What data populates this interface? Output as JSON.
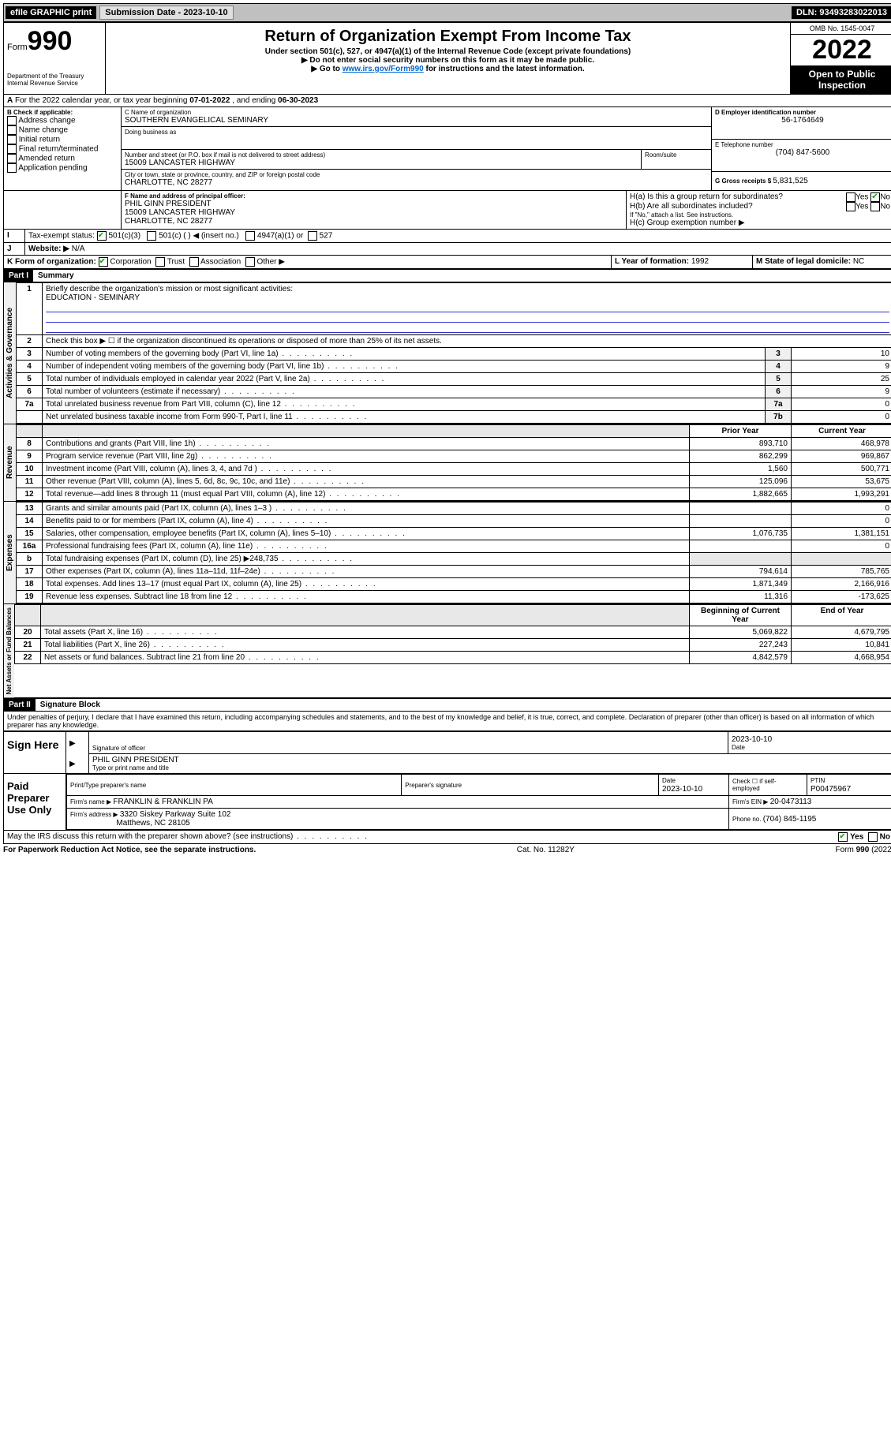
{
  "topbar": {
    "efile": "efile GRAPHIC print",
    "submission_label": "Submission Date - 2023-10-10",
    "dln_label": "DLN: 93493283022013"
  },
  "header": {
    "form_word": "Form",
    "form_num": "990",
    "dept": "Department of the Treasury",
    "irs": "Internal Revenue Service",
    "title": "Return of Organization Exempt From Income Tax",
    "subtitle": "Under section 501(c), 527, or 4947(a)(1) of the Internal Revenue Code (except private foundations)",
    "ssn_warn": "▶ Do not enter social security numbers on this form as it may be made public.",
    "goto_pre": "▶ Go to ",
    "goto_link": "www.irs.gov/Form990",
    "goto_post": " for instructions and the latest information.",
    "omb": "OMB No. 1545-0047",
    "year": "2022",
    "open": "Open to Public Inspection"
  },
  "periodA": {
    "text_a": "For the 2022 calendar year, or tax year beginning ",
    "begin": "07-01-2022",
    "text_b": " , and ending ",
    "end": "06-30-2023"
  },
  "boxB": {
    "label": "B Check if applicable:",
    "opts": [
      "Address change",
      "Name change",
      "Initial return",
      "Final return/terminated",
      "Amended return",
      "Application pending"
    ]
  },
  "boxC": {
    "name_label": "C Name of organization",
    "name": "SOUTHERN EVANGELICAL SEMINARY",
    "dba_label": "Doing business as",
    "street_label": "Number and street (or P.O. box if mail is not delivered to street address)",
    "room_label": "Room/suite",
    "street": "15009 LANCASTER HIGHWAY",
    "city_label": "City or town, state or province, country, and ZIP or foreign postal code",
    "city": "CHARLOTTE, NC  28277"
  },
  "boxD": {
    "label": "D Employer identification number",
    "value": "56-1764649"
  },
  "boxE": {
    "label": "E Telephone number",
    "value": "(704) 847-5600"
  },
  "boxG": {
    "label": "G Gross receipts $ ",
    "value": "5,831,525"
  },
  "boxF": {
    "label": "F Name and address of principal officer:",
    "line1": "PHIL GINN PRESIDENT",
    "line2": "15009 LANCASTER HIGHWAY",
    "line3": "CHARLOTTE, NC  28277"
  },
  "boxH": {
    "ha": "H(a)  Is this a group return for subordinates?",
    "hb": "H(b)  Are all subordinates included?",
    "hb_note": "If \"No,\" attach a list. See instructions.",
    "hc": "H(c)  Group exemption number ▶",
    "yes": "Yes",
    "no": "No"
  },
  "rowI": {
    "label": "Tax-exempt status:",
    "o1": "501(c)(3)",
    "o2": "501(c) (  ) ◀ (insert no.)",
    "o3": "4947(a)(1) or",
    "o4": "527"
  },
  "rowJ": {
    "label": "Website: ▶",
    "value": "N/A"
  },
  "rowK": {
    "label": "K Form of organization:",
    "o1": "Corporation",
    "o2": "Trust",
    "o3": "Association",
    "o4": "Other ▶"
  },
  "rowL": {
    "label": "L Year of formation: ",
    "value": "1992"
  },
  "rowM": {
    "label": "M State of legal domicile: ",
    "value": "NC"
  },
  "partI": {
    "header": "Part I",
    "title": "Summary"
  },
  "summary": {
    "line1_label": "Briefly describe the organization's mission or most significant activities:",
    "line1_value": "EDUCATION - SEMINARY",
    "line2_label": "Check this box ▶ ☐  if the organization discontinued its operations or disposed of more than 25% of its net assets.",
    "rows_single": [
      {
        "n": "3",
        "label": "Number of voting members of the governing body (Part VI, line 1a)",
        "idx": "3",
        "val": "10"
      },
      {
        "n": "4",
        "label": "Number of independent voting members of the governing body (Part VI, line 1b)",
        "idx": "4",
        "val": "9"
      },
      {
        "n": "5",
        "label": "Total number of individuals employed in calendar year 2022 (Part V, line 2a)",
        "idx": "5",
        "val": "25"
      },
      {
        "n": "6",
        "label": "Total number of volunteers (estimate if necessary)",
        "idx": "6",
        "val": "9"
      },
      {
        "n": "7a",
        "label": "Total unrelated business revenue from Part VIII, column (C), line 12",
        "idx": "7a",
        "val": "0"
      },
      {
        "n": "",
        "label": "Net unrelated business taxable income from Form 990-T, Part I, line 11",
        "idx": "7b",
        "val": "0"
      }
    ],
    "col_headers": {
      "prior": "Prior Year",
      "current": "Current Year"
    },
    "revenue": [
      {
        "n": "8",
        "label": "Contributions and grants (Part VIII, line 1h)",
        "p": "893,710",
        "c": "468,978"
      },
      {
        "n": "9",
        "label": "Program service revenue (Part VIII, line 2g)",
        "p": "862,299",
        "c": "969,867"
      },
      {
        "n": "10",
        "label": "Investment income (Part VIII, column (A), lines 3, 4, and 7d )",
        "p": "1,560",
        "c": "500,771"
      },
      {
        "n": "11",
        "label": "Other revenue (Part VIII, column (A), lines 5, 6d, 8c, 9c, 10c, and 11e)",
        "p": "125,096",
        "c": "53,675"
      },
      {
        "n": "12",
        "label": "Total revenue—add lines 8 through 11 (must equal Part VIII, column (A), line 12)",
        "p": "1,882,665",
        "c": "1,993,291"
      }
    ],
    "expenses": [
      {
        "n": "13",
        "label": "Grants and similar amounts paid (Part IX, column (A), lines 1–3 )",
        "p": "",
        "c": "0"
      },
      {
        "n": "14",
        "label": "Benefits paid to or for members (Part IX, column (A), line 4)",
        "p": "",
        "c": "0"
      },
      {
        "n": "15",
        "label": "Salaries, other compensation, employee benefits (Part IX, column (A), lines 5–10)",
        "p": "1,076,735",
        "c": "1,381,151"
      },
      {
        "n": "16a",
        "label": "Professional fundraising fees (Part IX, column (A), line 11e)",
        "p": "",
        "c": "0"
      },
      {
        "n": "b",
        "label": "Total fundraising expenses (Part IX, column (D), line 25) ▶248,735",
        "p": "shaded",
        "c": "shaded"
      },
      {
        "n": "17",
        "label": "Other expenses (Part IX, column (A), lines 11a–11d, 11f–24e)",
        "p": "794,614",
        "c": "785,765"
      },
      {
        "n": "18",
        "label": "Total expenses. Add lines 13–17 (must equal Part IX, column (A), line 25)",
        "p": "1,871,349",
        "c": "2,166,916"
      },
      {
        "n": "19",
        "label": "Revenue less expenses. Subtract line 18 from line 12",
        "p": "11,316",
        "c": "-173,625"
      }
    ],
    "net_headers": {
      "begin": "Beginning of Current Year",
      "end": "End of Year"
    },
    "net": [
      {
        "n": "20",
        "label": "Total assets (Part X, line 16)",
        "p": "5,069,822",
        "c": "4,679,795"
      },
      {
        "n": "21",
        "label": "Total liabilities (Part X, line 26)",
        "p": "227,243",
        "c": "10,841"
      },
      {
        "n": "22",
        "label": "Net assets or fund balances. Subtract line 21 from line 20",
        "p": "4,842,579",
        "c": "4,668,954"
      }
    ]
  },
  "vert": {
    "gov": "Activities & Governance",
    "rev": "Revenue",
    "exp": "Expenses",
    "net": "Net Assets or Fund Balances"
  },
  "partII": {
    "header": "Part II",
    "title": "Signature Block",
    "penalty": "Under penalties of perjury, I declare that I have examined this return, including accompanying schedules and statements, and to the best of my knowledge and belief, it is true, correct, and complete. Declaration of preparer (other than officer) is based on all information of which preparer has any knowledge."
  },
  "sign": {
    "here": "Sign Here",
    "sig_label": "Signature of officer",
    "date_label": "Date",
    "date": "2023-10-10",
    "name": "PHIL GINN PRESIDENT",
    "name_label": "Type or print name and title"
  },
  "paid": {
    "label": "Paid Preparer Use Only",
    "c1": "Print/Type preparer's name",
    "c2": "Preparer's signature",
    "c3": "Date",
    "c3v": "2023-10-10",
    "c4": "Check ☐ if self-employed",
    "c5": "PTIN",
    "c5v": "P00475967",
    "firm_label": "Firm's name    ▶ ",
    "firm": "FRANKLIN & FRANKLIN PA",
    "ein_label": "Firm's EIN ▶ ",
    "ein": "20-0473113",
    "addr_label": "Firm's address ▶ ",
    "addr1": "3320 Siskey Parkway Suite 102",
    "addr2": "Matthews, NC  28105",
    "phone_label": "Phone no. ",
    "phone": "(704) 845-1195"
  },
  "footer": {
    "discuss": "May the IRS discuss this return with the preparer shown above? (see instructions)",
    "yes": "Yes",
    "no": "No",
    "pra": "For Paperwork Reduction Act Notice, see the separate instructions.",
    "cat": "Cat. No. 11282Y",
    "form": "Form 990 (2022)"
  }
}
